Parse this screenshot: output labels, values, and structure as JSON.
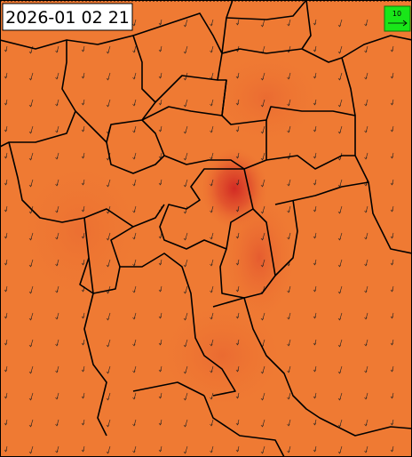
{
  "timestamp": "2026-01 02 21",
  "legend": {
    "label": "10"
  }
}
